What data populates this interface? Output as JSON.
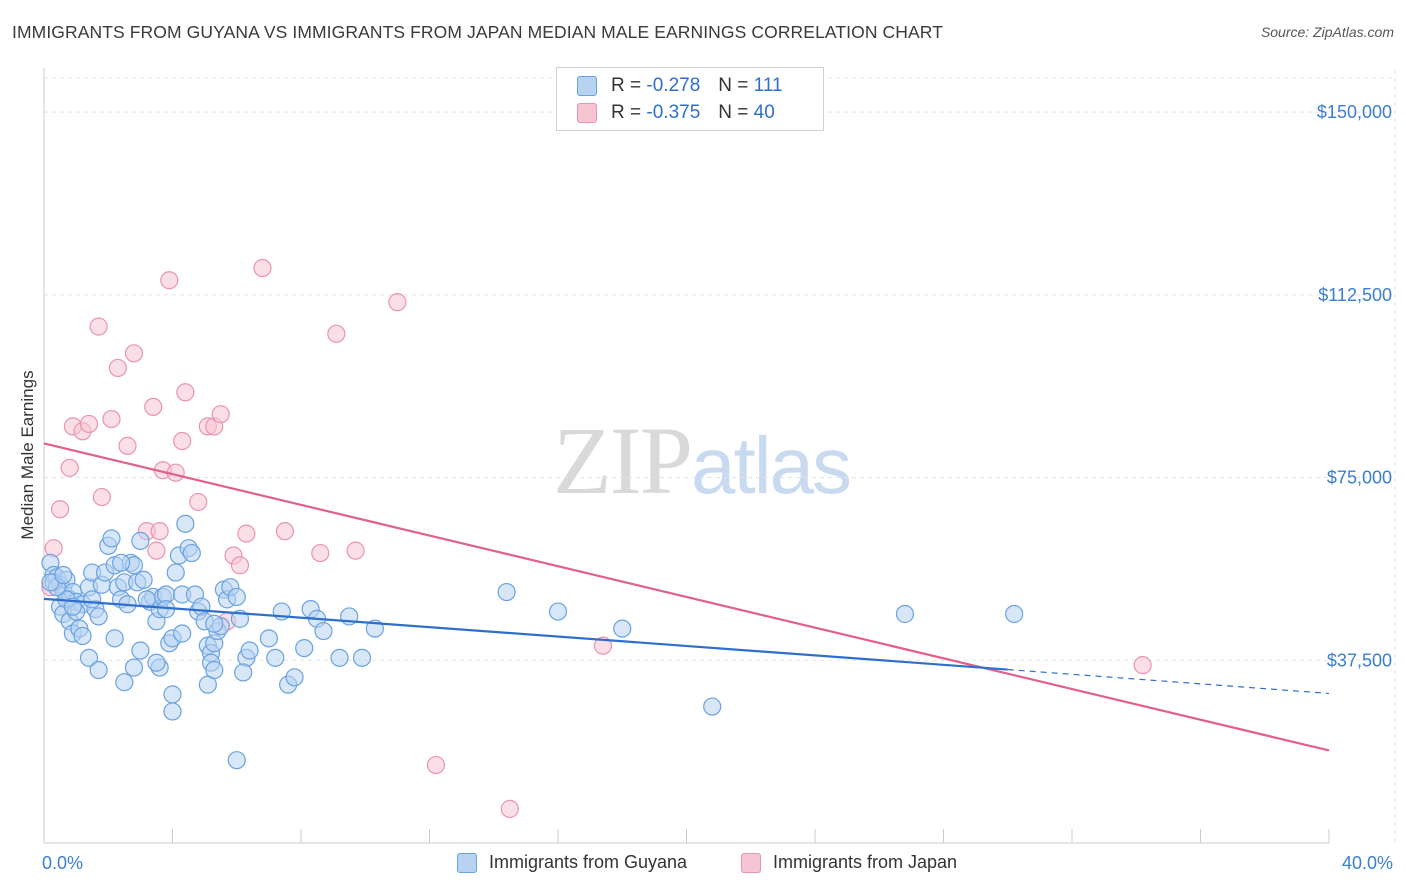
{
  "header": {
    "title": "IMMIGRANTS FROM GUYANA VS IMMIGRANTS FROM JAPAN MEDIAN MALE EARNINGS CORRELATION CHART",
    "source": "Source: ZipAtlas.com"
  },
  "watermark": {
    "zip": "ZIP",
    "atlas": "atlas"
  },
  "legend": {
    "guyana": {
      "r_label": "R =",
      "r_value": "-0.278",
      "n_label": "N =",
      "n_value": "111"
    },
    "japan": {
      "r_label": "R =",
      "r_value": "-0.375",
      "n_label": "N =",
      "n_value": "40"
    }
  },
  "colors": {
    "guyana_fill": "#b8d3f2",
    "guyana_stroke": "#6aa2e0",
    "guyana_line": "#2f6fcc",
    "japan_fill": "#f7c4d4",
    "japan_stroke": "#ea94b0",
    "japan_line": "#e0608e",
    "grid": "#e3e3e3",
    "axis": "#cccccc",
    "tick_text": "#3a7fd0"
  },
  "chart_data": {
    "type": "scatter",
    "title": "IMMIGRANTS FROM GUYANA VS IMMIGRANTS FROM JAPAN MEDIAN MALE EARNINGS CORRELATION CHART",
    "xlabel": "",
    "ylabel": "Median Male Earnings",
    "xlim": [
      0,
      40
    ],
    "ylim": [
      0,
      157000
    ],
    "x_tick_labels": [
      "0.0%",
      "40.0%"
    ],
    "y_ticks": [
      37500,
      75000,
      112500,
      150000
    ],
    "y_tick_labels": [
      "$37,500",
      "$75,000",
      "$112,500",
      "$150,000"
    ],
    "grid": true,
    "legend_position": "top-center",
    "series": [
      {
        "name": "Immigrants from Guyana",
        "R": -0.278,
        "N": 111,
        "trend": {
          "x0": 0,
          "y0": 50100,
          "x1": 30,
          "y1": 35600,
          "dashed_to_x": 40,
          "dashed_to_y": 30700
        },
        "points": [
          [
            0.2,
            57.5
          ],
          [
            0.3,
            55.0
          ],
          [
            0.4,
            54.5
          ],
          [
            0.5,
            53.0
          ],
          [
            0.6,
            52.0
          ],
          [
            0.7,
            54.0
          ],
          [
            0.8,
            50.0
          ],
          [
            0.9,
            51.5
          ],
          [
            1.0,
            49.5
          ],
          [
            0.3,
            53.5
          ],
          [
            0.5,
            48.5
          ],
          [
            0.6,
            47.0
          ],
          [
            0.8,
            45.5
          ],
          [
            0.9,
            43.0
          ],
          [
            1.1,
            44.0
          ],
          [
            1.2,
            49.0
          ],
          [
            1.4,
            52.5
          ],
          [
            1.5,
            55.5
          ],
          [
            1.6,
            48.0
          ],
          [
            1.7,
            46.5
          ],
          [
            1.8,
            53.0
          ],
          [
            1.9,
            55.5
          ],
          [
            2.0,
            61.0
          ],
          [
            2.1,
            62.5
          ],
          [
            2.2,
            57.0
          ],
          [
            2.3,
            52.5
          ],
          [
            2.4,
            50.0
          ],
          [
            2.5,
            53.5
          ],
          [
            2.6,
            49.0
          ],
          [
            2.7,
            57.5
          ],
          [
            2.8,
            57.0
          ],
          [
            2.9,
            53.5
          ],
          [
            3.0,
            62.0
          ],
          [
            3.1,
            54.0
          ],
          [
            3.3,
            49.5
          ],
          [
            3.4,
            50.5
          ],
          [
            3.5,
            45.5
          ],
          [
            3.6,
            48.0
          ],
          [
            3.7,
            50.5
          ],
          [
            3.8,
            51.0
          ],
          [
            3.9,
            41.0
          ],
          [
            4.0,
            42.0
          ],
          [
            4.2,
            59.0
          ],
          [
            4.3,
            51.0
          ],
          [
            4.4,
            65.5
          ],
          [
            4.5,
            60.5
          ],
          [
            4.6,
            59.5
          ],
          [
            4.7,
            51.0
          ],
          [
            4.8,
            47.5
          ],
          [
            4.9,
            48.5
          ],
          [
            5.0,
            45.5
          ],
          [
            5.1,
            40.5
          ],
          [
            5.2,
            39.0
          ],
          [
            5.3,
            41.0
          ],
          [
            5.4,
            43.5
          ],
          [
            5.5,
            44.5
          ],
          [
            5.6,
            52.0
          ],
          [
            5.7,
            50.0
          ],
          [
            5.8,
            52.5
          ],
          [
            6.0,
            50.5
          ],
          [
            6.1,
            46.0
          ],
          [
            6.3,
            38.0
          ],
          [
            6.4,
            39.5
          ],
          [
            5.3,
            45.0
          ],
          [
            4.3,
            43.0
          ],
          [
            3.6,
            36.0
          ],
          [
            2.8,
            36.0
          ],
          [
            2.5,
            33.0
          ],
          [
            3.0,
            39.5
          ],
          [
            3.5,
            37.0
          ],
          [
            1.4,
            38.0
          ],
          [
            1.7,
            35.5
          ],
          [
            2.2,
            42.0
          ],
          [
            1.0,
            47.5
          ],
          [
            0.7,
            50.0
          ],
          [
            0.4,
            52.5
          ],
          [
            0.2,
            53.5
          ],
          [
            0.6,
            55.0
          ],
          [
            1.2,
            42.5
          ],
          [
            1.5,
            50.0
          ],
          [
            2.4,
            57.5
          ],
          [
            3.2,
            50.0
          ],
          [
            3.8,
            48.0
          ],
          [
            4.1,
            55.5
          ],
          [
            5.2,
            37.0
          ],
          [
            4.0,
            30.5
          ],
          [
            4.0,
            27.0
          ],
          [
            5.1,
            32.5
          ],
          [
            5.3,
            35.5
          ],
          [
            6.2,
            35.0
          ],
          [
            7.0,
            42.0
          ],
          [
            7.2,
            38.0
          ],
          [
            7.4,
            47.5
          ],
          [
            7.6,
            32.5
          ],
          [
            7.8,
            34.0
          ],
          [
            8.1,
            40.0
          ],
          [
            8.3,
            48.0
          ],
          [
            8.5,
            46.0
          ],
          [
            8.7,
            43.5
          ],
          [
            9.2,
            38.0
          ],
          [
            9.5,
            46.5
          ],
          [
            9.9,
            38.0
          ],
          [
            10.3,
            44.0
          ],
          [
            14.4,
            51.5
          ],
          [
            16.0,
            47.5
          ],
          [
            18.0,
            44.0
          ],
          [
            20.8,
            28.0
          ],
          [
            26.8,
            47.0
          ],
          [
            30.2,
            47.0
          ],
          [
            6.0,
            17.0
          ],
          [
            0.9,
            48.5
          ]
        ]
      },
      {
        "name": "Immigrants from Japan",
        "R": -0.375,
        "N": 40,
        "trend": {
          "x0": 0,
          "y0": 82000,
          "x1": 40,
          "y1": 19000
        },
        "points": [
          [
            0.2,
            52.5
          ],
          [
            0.3,
            60.5
          ],
          [
            0.5,
            68.5
          ],
          [
            0.8,
            77.0
          ],
          [
            0.9,
            85.5
          ],
          [
            1.2,
            84.5
          ],
          [
            1.4,
            86.0
          ],
          [
            1.7,
            106.0
          ],
          [
            1.8,
            71.0
          ],
          [
            2.1,
            87.0
          ],
          [
            2.3,
            97.5
          ],
          [
            2.6,
            81.5
          ],
          [
            2.8,
            100.5
          ],
          [
            3.2,
            64.0
          ],
          [
            3.4,
            89.5
          ],
          [
            3.6,
            64.0
          ],
          [
            3.5,
            60.0
          ],
          [
            3.7,
            76.5
          ],
          [
            3.9,
            115.5
          ],
          [
            4.1,
            76.0
          ],
          [
            4.3,
            82.5
          ],
          [
            4.4,
            92.5
          ],
          [
            4.8,
            70.0
          ],
          [
            5.1,
            85.5
          ],
          [
            5.3,
            85.5
          ],
          [
            5.5,
            88.0
          ],
          [
            5.7,
            45.5
          ],
          [
            5.9,
            59.0
          ],
          [
            6.1,
            57.0
          ],
          [
            6.3,
            63.5
          ],
          [
            6.8,
            118.0
          ],
          [
            7.5,
            64.0
          ],
          [
            8.6,
            59.5
          ],
          [
            9.1,
            104.5
          ],
          [
            9.7,
            60.0
          ],
          [
            11.0,
            111.0
          ],
          [
            12.2,
            16.0
          ],
          [
            14.5,
            7.0
          ],
          [
            17.4,
            40.5
          ],
          [
            34.2,
            36.5
          ]
        ]
      }
    ],
    "bottom_legend": [
      "Immigrants from Guyana",
      "Immigrants from Japan"
    ]
  }
}
